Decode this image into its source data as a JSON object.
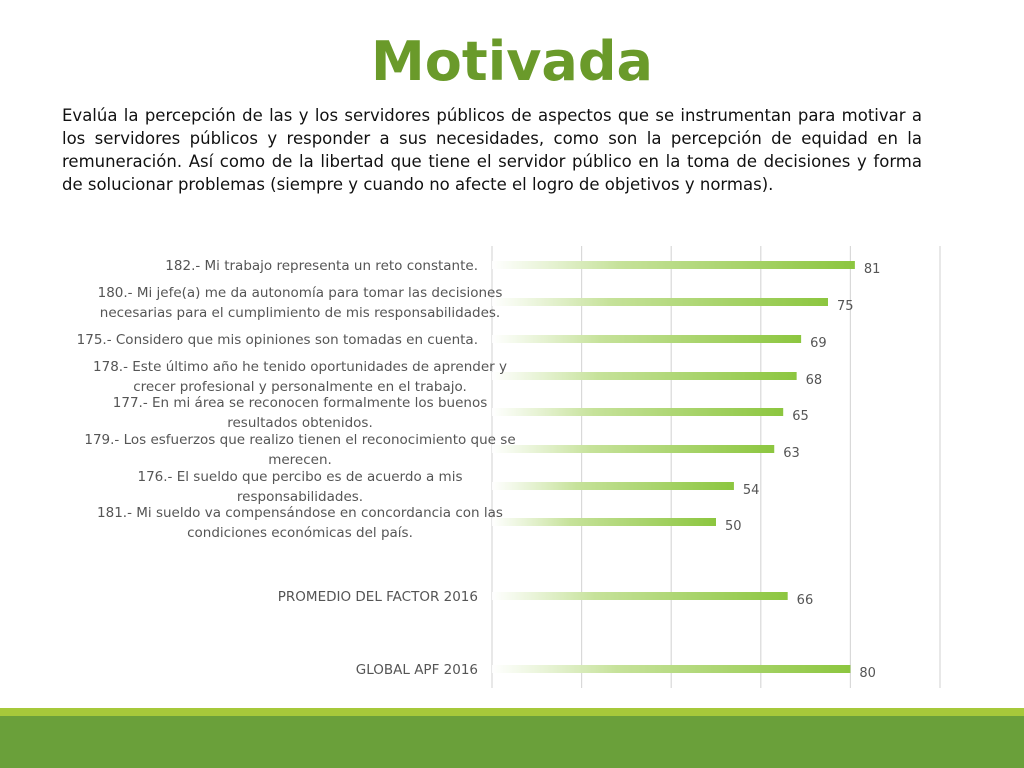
{
  "title": "Motivada",
  "description": "Evalúa la percepción de las y los servidores públicos de aspectos que se instrumentan para motivar a los servidores públicos y responder a sus necesidades, como son la percepción de equidad en la remuneración. Así como de la libertad que tiene el servidor público en la toma de decisiones y forma de solucionar problemas (siempre y cuando no afecte el logro de objetivos y normas).",
  "colors": {
    "title": "#6a9a2a",
    "bar": "#8cc63f",
    "footer_light": "#a6c93a",
    "footer_dark": "#6aa03a"
  },
  "chart_data": {
    "type": "bar",
    "orientation": "horizontal",
    "grid": true,
    "xlim": [
      0,
      100
    ],
    "categories": [
      [
        "182.- Mi trabajo representa un reto constante."
      ],
      [
        "180.- Mi jefe(a) me da autonomía para tomar las decisiones",
        "necesarias para el cumplimiento de mis responsabilidades."
      ],
      [
        "175.- Considero que mis opiniones son tomadas en cuenta."
      ],
      [
        "178.- Este último año he tenido oportunidades de aprender y",
        "crecer profesional y personalmente en el trabajo."
      ],
      [
        "177.- En mi área se reconocen formalmente los buenos",
        "resultados obtenidos."
      ],
      [
        "179.- Los esfuerzos que realizo tienen el reconocimiento que se",
        "merecen."
      ],
      [
        "176.- El sueldo que percibo es de acuerdo a mis",
        "responsabilidades."
      ],
      [
        "181.- Mi sueldo va compensándose en concordancia con las",
        "condiciones económicas del país."
      ],
      [
        "PROMEDIO DEL FACTOR   2016"
      ],
      [
        "GLOBAL APF   2016"
      ]
    ],
    "values": [
      81,
      75,
      69,
      68,
      65,
      63,
      54,
      50,
      66,
      80
    ],
    "data_labels": [
      "81",
      "75",
      "69",
      "68",
      "65",
      "63",
      "54",
      "50",
      "66",
      "80"
    ]
  }
}
